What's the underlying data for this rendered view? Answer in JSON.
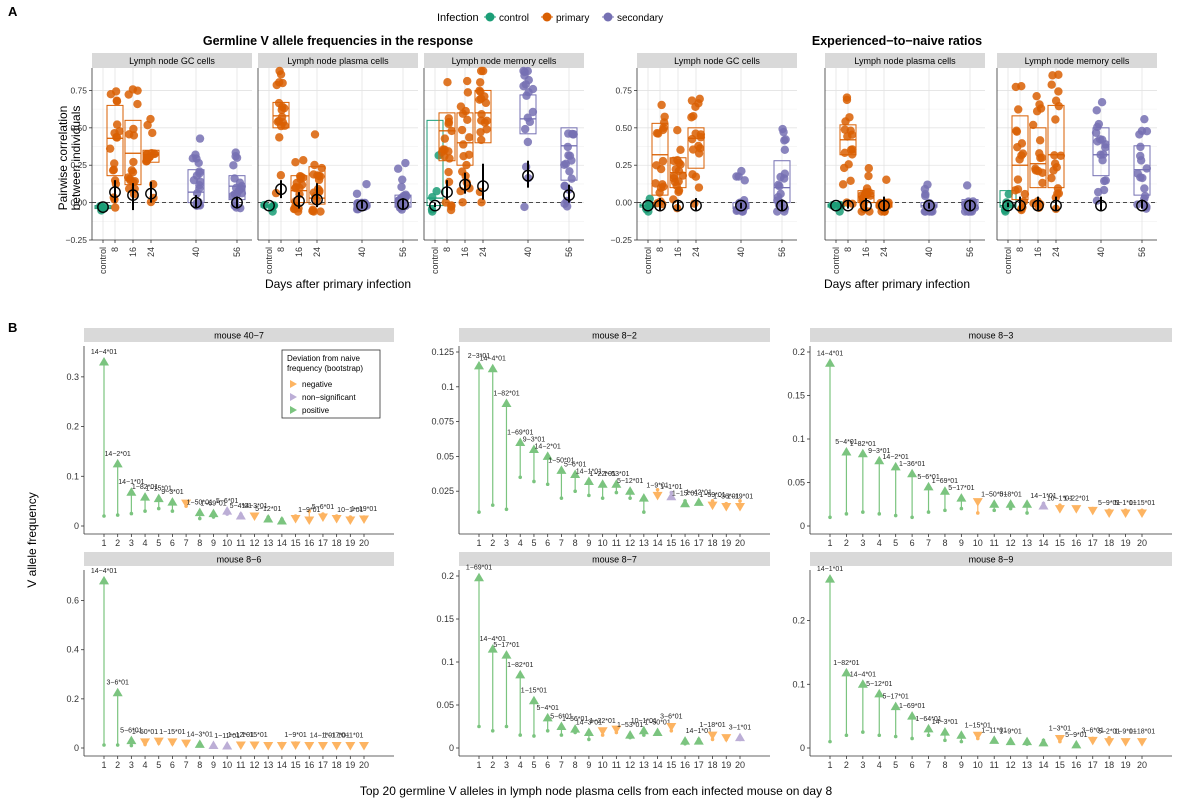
{
  "panel_a_label": "A",
  "panel_b_label": "B",
  "legend": {
    "title": "Infection",
    "items": [
      {
        "label": "control",
        "color": "#1b9e77"
      },
      {
        "label": "primary",
        "color": "#d95f02"
      },
      {
        "label": "secondary",
        "color": "#7570b3"
      }
    ]
  },
  "panel_a": {
    "xlabel": "Days after primary infection",
    "ylabel_line1": "Pairwise correlation",
    "ylabel_line2": "between individuals",
    "y_ticks": [
      -0.25,
      0.0,
      0.25,
      0.5,
      0.75
    ],
    "y_tick_labels": [
      "−0.25",
      "0.00",
      "0.25",
      "0.50",
      "0.75"
    ],
    "x_categories": [
      "control",
      "8",
      "16",
      "24",
      "40",
      "56"
    ],
    "groups": [
      {
        "title": "Germline V allele frequencies in the response",
        "facets": [
          "Lymph node GC cells",
          "Lymph node plasma cells",
          "Lymph node memory cells"
        ]
      },
      {
        "title": "Experienced−to−naive ratios",
        "facets": [
          "Lymph node GC cells",
          "Lymph node plasma cells",
          "Lymph node memory cells"
        ]
      }
    ]
  },
  "panel_b": {
    "xlabel": "Top 20 germline V alleles in lymph node plasma cells from each infected mouse on day 8",
    "ylabel": "V allele frequency",
    "legend_title_line1": "Deviation from naive",
    "legend_title_line2": "frequency (bootstrap)",
    "legend_items": [
      {
        "label": "negative",
        "color": "#fdb462"
      },
      {
        "label": "non−significant",
        "color": "#bcaed6"
      },
      {
        "label": "positive",
        "color": "#7bc47f"
      }
    ],
    "x_ticks": [
      "1",
      "2",
      "3",
      "4",
      "5",
      "6",
      "7",
      "8",
      "9",
      "10",
      "11",
      "12",
      "13",
      "14",
      "15",
      "16",
      "17",
      "18",
      "19",
      "20"
    ]
  },
  "chart_data": [
    {
      "type": "box",
      "panel": "A",
      "title": "Germline V allele frequencies in the response",
      "facet": "Lymph node GC cells",
      "x": [
        "control",
        "8",
        "16",
        "24",
        "40",
        "56"
      ],
      "median": [
        -0.03,
        0.43,
        0.33,
        0.32,
        0.07,
        0.11
      ],
      "q1": [
        -0.04,
        0.18,
        0.12,
        0.27,
        0.0,
        0.02
      ],
      "q3": [
        -0.02,
        0.65,
        0.55,
        0.35,
        0.22,
        0.18
      ],
      "point_estimate": [
        -0.03,
        0.07,
        0.05,
        0.06,
        0.0,
        0.0
      ],
      "ci": [
        [
          -0.03,
          -0.03
        ],
        [
          0.0,
          0.15
        ],
        [
          -0.05,
          0.13
        ],
        [
          0.0,
          0.14
        ],
        [
          -0.04,
          0.05
        ],
        [
          -0.04,
          0.04
        ]
      ]
    },
    {
      "type": "box",
      "panel": "A",
      "title": "Germline V allele frequencies in the response",
      "facet": "Lymph node plasma cells",
      "x": [
        "control",
        "8",
        "16",
        "24",
        "40",
        "56"
      ],
      "median": [
        -0.02,
        0.58,
        0.08,
        0.03,
        -0.02,
        0.0
      ],
      "q1": [
        -0.03,
        0.5,
        0.0,
        -0.01,
        -0.03,
        -0.03
      ],
      "q3": [
        -0.01,
        0.67,
        0.18,
        0.24,
        0.0,
        0.05
      ],
      "point_estimate": [
        -0.02,
        0.09,
        0.01,
        0.02,
        -0.02,
        -0.01
      ],
      "ci": [
        [
          -0.02,
          -0.02
        ],
        [
          0.03,
          0.15
        ],
        [
          -0.04,
          0.07
        ],
        [
          -0.03,
          0.13
        ],
        [
          -0.04,
          0.01
        ],
        [
          -0.04,
          0.03
        ]
      ]
    },
    {
      "type": "box",
      "panel": "A",
      "title": "Germline V allele frequencies in the response",
      "facet": "Lymph node memory cells",
      "x": [
        "control",
        "8",
        "16",
        "24",
        "40",
        "56"
      ],
      "median": [
        0.03,
        0.48,
        0.4,
        0.6,
        0.56,
        0.38
      ],
      "q1": [
        -0.02,
        0.28,
        0.25,
        0.4,
        0.46,
        0.15
      ],
      "q3": [
        0.55,
        0.6,
        0.6,
        0.75,
        0.72,
        0.5
      ],
      "point_estimate": [
        -0.02,
        0.07,
        0.12,
        0.11,
        0.18,
        0.05
      ],
      "ci": [
        [
          -0.03,
          0.0
        ],
        [
          0.02,
          0.15
        ],
        [
          0.06,
          0.2
        ],
        [
          0.02,
          0.26
        ],
        [
          0.1,
          0.28
        ],
        [
          0.0,
          0.12
        ]
      ]
    },
    {
      "type": "box",
      "panel": "A",
      "title": "Experienced−to−naive ratios",
      "facet": "Lymph node GC cells",
      "x": [
        "control",
        "8",
        "16",
        "24",
        "40",
        "56"
      ],
      "median": [
        -0.02,
        0.32,
        0.2,
        0.43,
        -0.03,
        0.1
      ],
      "q1": [
        -0.03,
        0.05,
        0.1,
        0.23,
        -0.04,
        0.0
      ],
      "q3": [
        -0.01,
        0.53,
        0.3,
        0.5,
        0.0,
        0.28
      ],
      "point_estimate": [
        -0.02,
        -0.02,
        -0.02,
        -0.02,
        -0.02,
        -0.02
      ],
      "ci": [
        [
          -0.02,
          -0.02
        ],
        [
          -0.05,
          0.03
        ],
        [
          -0.05,
          0.02
        ],
        [
          -0.05,
          0.03
        ],
        [
          -0.04,
          0.0
        ],
        [
          -0.05,
          0.02
        ]
      ]
    },
    {
      "type": "box",
      "panel": "A",
      "title": "Experienced−to−naive ratios",
      "facet": "Lymph node plasma cells",
      "x": [
        "control",
        "8",
        "16",
        "24",
        "40",
        "56"
      ],
      "median": [
        -0.02,
        0.42,
        0.04,
        -0.02,
        -0.02,
        -0.02
      ],
      "q1": [
        -0.03,
        0.32,
        0.0,
        -0.03,
        -0.03,
        -0.04
      ],
      "q3": [
        -0.01,
        0.52,
        0.08,
        0.0,
        0.0,
        0.02
      ],
      "point_estimate": [
        -0.02,
        -0.02,
        -0.02,
        -0.02,
        -0.02,
        -0.02
      ],
      "ci": [
        [
          -0.02,
          -0.02
        ],
        [
          -0.04,
          0.01
        ],
        [
          -0.05,
          0.03
        ],
        [
          -0.05,
          0.04
        ],
        [
          -0.04,
          0.0
        ],
        [
          -0.05,
          0.02
        ]
      ]
    },
    {
      "type": "box",
      "panel": "A",
      "title": "Experienced−to−naive ratios",
      "facet": "Lymph node memory cells",
      "x": [
        "control",
        "8",
        "16",
        "24",
        "40",
        "56"
      ],
      "median": [
        -0.02,
        0.25,
        0.26,
        0.32,
        0.32,
        0.22
      ],
      "q1": [
        -0.03,
        0.02,
        0.1,
        0.1,
        0.18,
        0.05
      ],
      "q3": [
        0.08,
        0.58,
        0.5,
        0.65,
        0.5,
        0.38
      ],
      "point_estimate": [
        -0.02,
        -0.02,
        -0.02,
        -0.02,
        -0.02,
        -0.02
      ],
      "ci": [
        [
          -0.03,
          0.0
        ],
        [
          -0.05,
          0.04
        ],
        [
          -0.05,
          0.04
        ],
        [
          -0.05,
          0.04
        ],
        [
          -0.05,
          0.04
        ],
        [
          -0.04,
          0.02
        ]
      ]
    },
    {
      "type": "lollipop",
      "panel": "B",
      "facet": "mouse 40−7",
      "ylim": [
        0,
        0.35
      ],
      "y_ticks": [
        0,
        0.1,
        0.2,
        0.3
      ],
      "values": [
        0.33,
        0.125,
        0.068,
        0.058,
        0.055,
        0.048,
        0.046,
        0.027,
        0.025,
        0.03,
        0.02,
        0.02,
        0.014,
        0.01,
        0.015,
        0.012,
        0.018,
        0.015,
        0.012,
        0.014
      ],
      "naive": [
        0.02,
        0.022,
        0.025,
        0.03,
        0.035,
        0.03,
        0.04,
        0.015,
        0.018,
        0.024,
        0.024,
        0.022,
        0.018,
        0.014,
        0.02,
        0.03,
        0.024,
        0.02,
        0.018,
        0.018
      ],
      "deviation": [
        "positive",
        "positive",
        "positive",
        "positive",
        "positive",
        "positive",
        "negative",
        "positive",
        "positive",
        "non-significant",
        "non-significant",
        "negative",
        "positive",
        "positive",
        "negative",
        "negative",
        "negative",
        "negative",
        "negative",
        "negative"
      ],
      "allele_labels": [
        "14−4*01",
        "14−2*01",
        "14−1*01",
        "1−82*01",
        "1−15*01",
        "9−3*01",
        "",
        "1−50*01",
        "1−69*01",
        "5−6*01",
        "5−4*01",
        "14−3*01",
        "5−12*01",
        "",
        "",
        "1−9*01",
        "5−6*01",
        "",
        "10−1*01",
        "1−19*01"
      ]
    },
    {
      "type": "lollipop",
      "panel": "B",
      "facet": "mouse 8−2",
      "ylim": [
        0,
        0.125
      ],
      "y_ticks": [
        0.025,
        0.05,
        0.075,
        0.1,
        0.125
      ],
      "values": [
        0.115,
        0.113,
        0.088,
        0.06,
        0.055,
        0.05,
        0.04,
        0.037,
        0.032,
        0.03,
        0.03,
        0.025,
        0.02,
        0.022,
        0.021,
        0.016,
        0.017,
        0.015,
        0.014,
        0.014
      ],
      "naive": [
        0.01,
        0.015,
        0.012,
        0.035,
        0.032,
        0.03,
        0.02,
        0.025,
        0.022,
        0.02,
        0.024,
        0.02,
        0.01,
        0.026,
        0.024,
        0.018,
        0.016,
        0.018,
        0.016,
        0.018
      ],
      "deviation": [
        "positive",
        "positive",
        "positive",
        "positive",
        "positive",
        "positive",
        "positive",
        "positive",
        "positive",
        "positive",
        "positive",
        "positive",
        "positive",
        "negative",
        "non-significant",
        "positive",
        "positive",
        "negative",
        "negative",
        "negative"
      ],
      "allele_labels": [
        "2−3*01",
        "14−4*01",
        "1−82*01",
        "1−69*01",
        "9−3*01",
        "14−2*01",
        "1−50*01",
        "5−6*01",
        "14−1*01",
        "1−22*01",
        "1−53*01",
        "5−12*01",
        "",
        "1−9*01",
        "1−1*01",
        "1−15*01",
        "1−42*01",
        "1−59*01",
        "1−36*01",
        "1−19*01"
      ]
    },
    {
      "type": "lollipop",
      "panel": "B",
      "facet": "mouse 8−3",
      "ylim": [
        0,
        0.2
      ],
      "y_ticks": [
        0,
        0.05,
        0.1,
        0.15,
        0.2
      ],
      "values": [
        0.187,
        0.085,
        0.083,
        0.075,
        0.068,
        0.06,
        0.045,
        0.04,
        0.032,
        0.028,
        0.025,
        0.025,
        0.025,
        0.023,
        0.02,
        0.02,
        0.018,
        0.015,
        0.015,
        0.015
      ],
      "naive": [
        0.01,
        0.014,
        0.016,
        0.014,
        0.012,
        0.01,
        0.016,
        0.018,
        0.02,
        0.015,
        0.018,
        0.02,
        0.015,
        0.026,
        0.024,
        0.02,
        0.02,
        0.018,
        0.018,
        0.018
      ],
      "deviation": [
        "positive",
        "positive",
        "positive",
        "positive",
        "positive",
        "positive",
        "positive",
        "positive",
        "positive",
        "negative",
        "positive",
        "positive",
        "positive",
        "non-significant",
        "negative",
        "negative",
        "negative",
        "negative",
        "negative",
        "negative"
      ],
      "allele_labels": [
        "14−4*01",
        "5−4*01",
        "1−82*01",
        "9−3*01",
        "14−2*01",
        "1−36*01",
        "5−6*01",
        "1−69*01",
        "5−17*01",
        "",
        "1−50*01",
        "5−8*01",
        "",
        "14−1*01",
        "10−1*01",
        "1−22*01",
        "",
        "5−9*01",
        "5−1*01",
        "1−15*01"
      ]
    },
    {
      "type": "lollipop",
      "panel": "B",
      "facet": "mouse 8−6",
      "ylim": [
        0,
        0.7
      ],
      "y_ticks": [
        0,
        0.2,
        0.4,
        0.6
      ],
      "values": [
        0.68,
        0.225,
        0.03,
        0.025,
        0.028,
        0.025,
        0.02,
        0.015,
        0.01,
        0.008,
        0.012,
        0.012,
        0.01,
        0.01,
        0.012,
        0.01,
        0.01,
        0.01,
        0.01,
        0.01
      ],
      "naive": [
        0.012,
        0.012,
        0.01,
        0.015,
        0.02,
        0.018,
        0.015,
        0.02,
        0.01,
        0.012,
        0.018,
        0.015,
        0.014,
        0.018,
        0.02,
        0.014,
        0.016,
        0.016,
        0.015,
        0.015
      ],
      "deviation": [
        "positive",
        "positive",
        "positive",
        "negative",
        "negative",
        "negative",
        "negative",
        "positive",
        "non-significant",
        "non-significant",
        "negative",
        "negative",
        "negative",
        "negative",
        "negative",
        "negative",
        "negative",
        "negative",
        "negative",
        "negative"
      ],
      "allele_labels": [
        "14−4*01",
        "3−6*01",
        "5−6*01",
        "1−50*01",
        "",
        "1−15*01",
        "",
        "14−3*01",
        "",
        "1−11*01",
        "1−12*01",
        "1−15*01",
        "",
        "",
        "1−9*01",
        "",
        "14−1*01",
        "1−17*01",
        "10−1*01",
        ""
      ]
    },
    {
      "type": "lollipop",
      "panel": "B",
      "facet": "mouse 8−7",
      "ylim": [
        0,
        0.2
      ],
      "y_ticks": [
        0,
        0.05,
        0.1,
        0.15,
        0.2
      ],
      "values": [
        0.198,
        0.115,
        0.108,
        0.085,
        0.055,
        0.035,
        0.025,
        0.022,
        0.018,
        0.02,
        0.022,
        0.015,
        0.02,
        0.018,
        0.025,
        0.008,
        0.008,
        0.015,
        0.012,
        0.012
      ],
      "naive": [
        0.025,
        0.02,
        0.025,
        0.015,
        0.014,
        0.02,
        0.015,
        0.018,
        0.01,
        0.015,
        0.018,
        0.012,
        0.015,
        0.016,
        0.02,
        0.005,
        0.01,
        0.01,
        0.01,
        0.01
      ],
      "deviation": [
        "positive",
        "positive",
        "positive",
        "positive",
        "positive",
        "positive",
        "positive",
        "positive",
        "positive",
        "negative",
        "negative",
        "positive",
        "positive",
        "positive",
        "negative",
        "positive",
        "positive",
        "negative",
        "negative",
        "non-significant"
      ],
      "allele_labels": [
        "1−69*01",
        "14−4*01",
        "5−17*01",
        "1−82*01",
        "1−15*01",
        "5−4*01",
        "5−6*01",
        "1−56*01",
        "14−3*01",
        "1−22*01",
        "",
        "1−53*01",
        "10−1*01",
        "1−50*01",
        "3−6*01",
        "",
        "14−1*01",
        "1−18*01",
        "",
        "3−1*01"
      ]
    },
    {
      "type": "lollipop",
      "panel": "B",
      "facet": "mouse 8−9",
      "ylim": [
        0,
        0.27
      ],
      "y_ticks": [
        0,
        0.1,
        0.2
      ],
      "values": [
        0.265,
        0.118,
        0.1,
        0.085,
        0.065,
        0.05,
        0.03,
        0.025,
        0.02,
        0.02,
        0.012,
        0.01,
        0.01,
        0.008,
        0.015,
        0.005,
        0.012,
        0.01,
        0.01,
        0.01
      ],
      "naive": [
        0.01,
        0.02,
        0.025,
        0.02,
        0.018,
        0.015,
        0.02,
        0.012,
        0.01,
        0.015,
        0.01,
        0.008,
        0.006,
        0.012,
        0.01,
        0.003,
        0.015,
        0.016,
        0.012,
        0.012
      ],
      "deviation": [
        "positive",
        "positive",
        "positive",
        "positive",
        "positive",
        "positive",
        "positive",
        "positive",
        "positive",
        "negative",
        "positive",
        "positive",
        "positive",
        "positive",
        "negative",
        "positive",
        "negative",
        "negative",
        "negative",
        "negative"
      ],
      "allele_labels": [
        "14−1*01",
        "1−82*01",
        "14−4*01",
        "5−12*01",
        "5−17*01",
        "1−69*01",
        "1−64*01",
        "14−3*01",
        "",
        "1−15*01",
        "1−11*01",
        "1−9*01",
        "",
        "",
        "1−3*01",
        "5−9*01",
        "3−6*01",
        "5−2*01",
        "1−9*01",
        "1−18*01"
      ]
    }
  ]
}
